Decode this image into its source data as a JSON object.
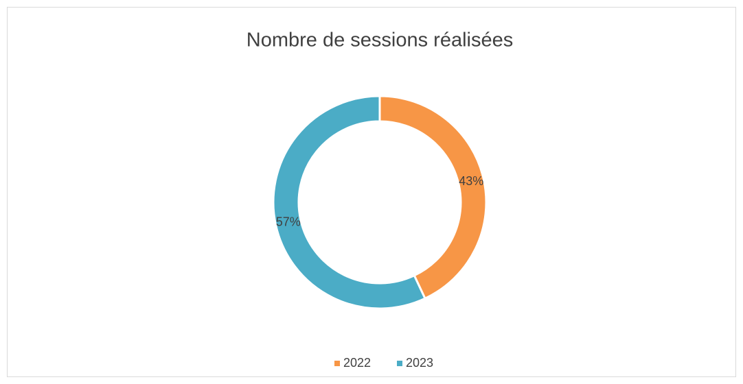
{
  "chart_data": {
    "type": "doughnut",
    "title": "Nombre de sessions réalisées",
    "categories": [
      "2022",
      "2023"
    ],
    "values": [
      43,
      57
    ],
    "value_labels": [
      "43%",
      "57%"
    ],
    "colors": [
      "#f79646",
      "#4bacc6"
    ],
    "legend": "bottom"
  }
}
